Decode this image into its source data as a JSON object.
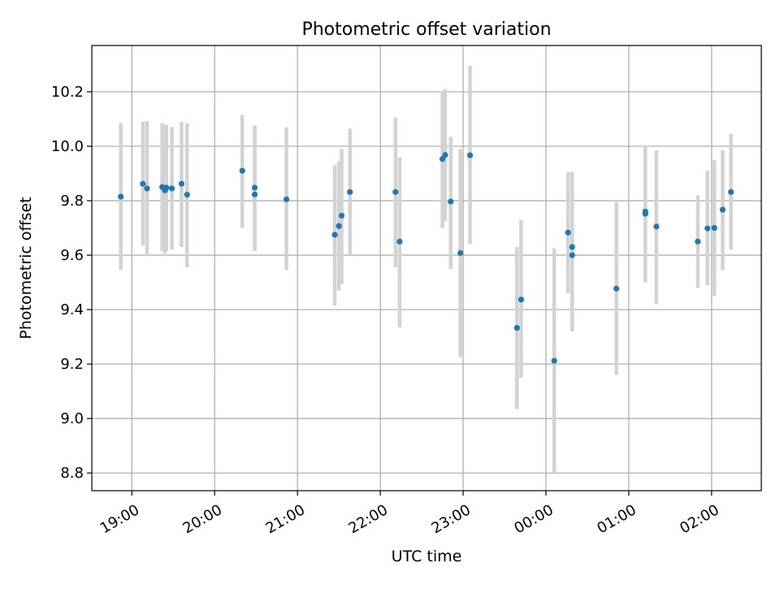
{
  "chart_data": {
    "type": "scatter",
    "title": "Photometric offset variation",
    "xlabel": "UTC time",
    "ylabel": "Photometric offset",
    "x_tick_labels": [
      "19:00",
      "20:00",
      "21:00",
      "22:00",
      "23:00",
      "00:00",
      "01:00",
      "02:00"
    ],
    "x_ticks": [
      "2000-01-01T19:00",
      "2000-01-01T20:00",
      "2000-01-01T21:00",
      "2000-01-01T22:00",
      "2000-01-01T23:00",
      "2000-01-02T00:00",
      "2000-01-02T01:00",
      "2000-01-02T02:00"
    ],
    "xlim": [
      "2000-01-01T18:31",
      "2000-01-02T02:36"
    ],
    "y_ticks": [
      8.8,
      9.0,
      9.2,
      9.4,
      9.6,
      9.8,
      10.0,
      10.2
    ],
    "y_tick_labels": [
      "8.8",
      "9.0",
      "9.2",
      "9.4",
      "9.6",
      "9.8",
      "10.0",
      "10.2"
    ],
    "ylim": [
      8.735,
      10.37
    ],
    "grid": true,
    "points": [
      {
        "x": "2000-01-01T18:52",
        "y": 9.815,
        "y_low": 9.545,
        "y_high": 10.085
      },
      {
        "x": "2000-01-01T19:08",
        "y": 9.862,
        "y_low": 9.635,
        "y_high": 10.09
      },
      {
        "x": "2000-01-01T19:11",
        "y": 9.845,
        "y_low": 9.598,
        "y_high": 10.092
      },
      {
        "x": "2000-01-01T19:22",
        "y": 9.85,
        "y_low": 9.615,
        "y_high": 10.085
      },
      {
        "x": "2000-01-01T19:24",
        "y": 9.838,
        "y_low": 9.605,
        "y_high": 10.075
      },
      {
        "x": "2000-01-01T19:25",
        "y": 9.848,
        "y_low": 9.615,
        "y_high": 10.08
      },
      {
        "x": "2000-01-01T19:29",
        "y": 9.845,
        "y_low": 9.62,
        "y_high": 10.07
      },
      {
        "x": "2000-01-01T19:36",
        "y": 9.862,
        "y_low": 9.63,
        "y_high": 10.09
      },
      {
        "x": "2000-01-01T19:40",
        "y": 9.822,
        "y_low": 9.555,
        "y_high": 10.085
      },
      {
        "x": "2000-01-01T20:20",
        "y": 9.91,
        "y_low": 9.7,
        "y_high": 10.115
      },
      {
        "x": "2000-01-01T20:29",
        "y": 9.848,
        "y_low": 9.615,
        "y_high": 10.075
      },
      {
        "x": "2000-01-01T20:29",
        "y": 9.823,
        "y_low": 9.615,
        "y_high": 10.075
      },
      {
        "x": "2000-01-01T20:52",
        "y": 9.805,
        "y_low": 9.545,
        "y_high": 10.07
      },
      {
        "x": "2000-01-01T21:27",
        "y": 9.675,
        "y_low": 9.415,
        "y_high": 9.93
      },
      {
        "x": "2000-01-01T21:30",
        "y": 9.707,
        "y_low": 9.47,
        "y_high": 9.945
      },
      {
        "x": "2000-01-01T21:32",
        "y": 9.745,
        "y_low": 9.495,
        "y_high": 9.99
      },
      {
        "x": "2000-01-01T21:38",
        "y": 9.832,
        "y_low": 9.6,
        "y_high": 10.065
      },
      {
        "x": "2000-01-01T22:11",
        "y": 9.832,
        "y_low": 9.555,
        "y_high": 10.105
      },
      {
        "x": "2000-01-01T22:14",
        "y": 9.65,
        "y_low": 9.335,
        "y_high": 9.96
      },
      {
        "x": "2000-01-01T22:45",
        "y": 9.953,
        "y_low": 9.7,
        "y_high": 10.2
      },
      {
        "x": "2000-01-01T22:47",
        "y": 9.968,
        "y_low": 9.725,
        "y_high": 10.21
      },
      {
        "x": "2000-01-01T22:51",
        "y": 9.797,
        "y_low": 9.55,
        "y_high": 10.035
      },
      {
        "x": "2000-01-01T22:58",
        "y": 9.608,
        "y_low": 9.225,
        "y_high": 9.99
      },
      {
        "x": "2000-01-01T23:05",
        "y": 9.967,
        "y_low": 9.64,
        "y_high": 10.295
      },
      {
        "x": "2000-01-01T23:39",
        "y": 9.333,
        "y_low": 9.035,
        "y_high": 9.63
      },
      {
        "x": "2000-01-01T23:42",
        "y": 9.437,
        "y_low": 9.15,
        "y_high": 9.73
      },
      {
        "x": "2000-01-02T00:06",
        "y": 9.212,
        "y_low": 8.8,
        "y_high": 9.625
      },
      {
        "x": "2000-01-02T00:16",
        "y": 9.683,
        "y_low": 9.46,
        "y_high": 9.905
      },
      {
        "x": "2000-01-02T00:19",
        "y": 9.63,
        "y_low": 9.32,
        "y_high": 9.905
      },
      {
        "x": "2000-01-02T00:19",
        "y": 9.6,
        "y_low": 9.32,
        "y_high": 9.905
      },
      {
        "x": "2000-01-02T00:51",
        "y": 9.477,
        "y_low": 9.16,
        "y_high": 9.795
      },
      {
        "x": "2000-01-02T01:12",
        "y": 9.752,
        "y_low": 9.5,
        "y_high": 10.0
      },
      {
        "x": "2000-01-02T01:12",
        "y": 9.76,
        "y_low": 9.5,
        "y_high": 10.0
      },
      {
        "x": "2000-01-02T01:20",
        "y": 9.705,
        "y_low": 9.42,
        "y_high": 9.985
      },
      {
        "x": "2000-01-02T01:50",
        "y": 9.65,
        "y_low": 9.48,
        "y_high": 9.82
      },
      {
        "x": "2000-01-02T01:57",
        "y": 9.698,
        "y_low": 9.49,
        "y_high": 9.91
      },
      {
        "x": "2000-01-02T02:02",
        "y": 9.7,
        "y_low": 9.45,
        "y_high": 9.95
      },
      {
        "x": "2000-01-02T02:08",
        "y": 9.767,
        "y_low": 9.545,
        "y_high": 9.985
      },
      {
        "x": "2000-01-02T02:14",
        "y": 9.832,
        "y_low": 9.62,
        "y_high": 10.045
      }
    ],
    "colors": {
      "point": "#1f77b4",
      "errorbar": "#d3d3d3",
      "grid": "#b0b0b0",
      "axes": "#000000"
    }
  }
}
